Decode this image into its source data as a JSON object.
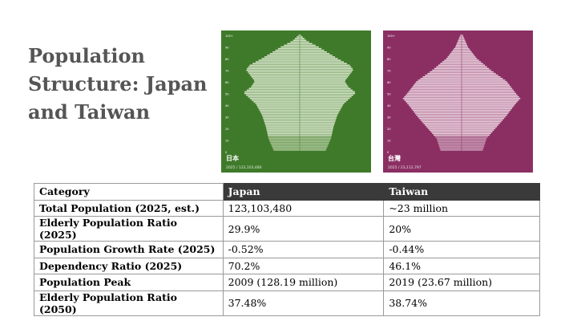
{
  "slide": {
    "title": "Population Structure: Japan and Taiwan"
  },
  "pyramids": [
    {
      "country": "日本",
      "subtitle": "2025 / 123,103,480",
      "bg_color": "#3f7a2a",
      "bar_color": "#d9e6cc",
      "shade_color": "#a9c596"
    },
    {
      "country": "台灣",
      "subtitle": "2025 / 23,112,797",
      "bg_color": "#8b2f63",
      "bar_color": "#ecd5e1",
      "shade_color": "#c898b3"
    }
  ],
  "axis_labels": [
    "100+",
    "90",
    "80",
    "70",
    "60",
    "50",
    "40",
    "30",
    "20",
    "10",
    "0"
  ],
  "table": {
    "headers": [
      "Category",
      "Japan",
      "Taiwan"
    ],
    "rows": [
      [
        "Total Population (2025, est.)",
        "123,103,480",
        "~23 million"
      ],
      [
        "Elderly Population Ratio (2025)",
        "29.9%",
        "20%"
      ],
      [
        "Population Growth Rate (2025)",
        "-0.52%",
        "-0.44%"
      ],
      [
        "Dependency Ratio (2025)",
        "70.2%",
        "46.1%"
      ],
      [
        "Population Peak",
        "2009 (128.19 million)",
        "2019 (23.67 million)"
      ],
      [
        "Elderly Population Ratio (2050)",
        "37.48%",
        "38.74%"
      ]
    ]
  }
}
